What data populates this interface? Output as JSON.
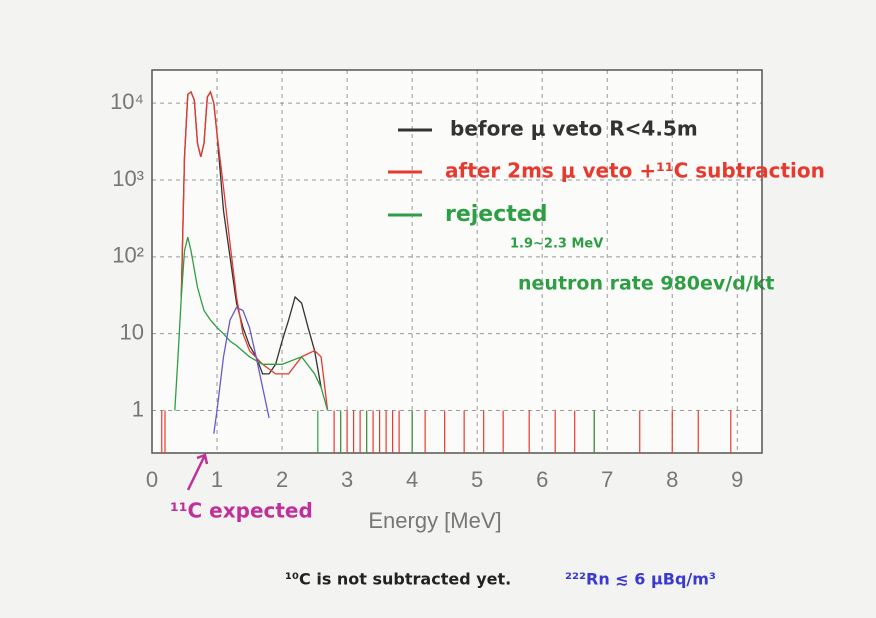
{
  "chart_data": {
    "type": "line",
    "x_label": "Energy [MeV]",
    "xlim": [
      0,
      9.38
    ],
    "xticks": [
      0,
      1,
      2,
      3,
      4,
      5,
      6,
      7,
      8,
      9
    ],
    "ylim": [
      0.28,
      27000
    ],
    "yticks": [
      1,
      10,
      {
        "value": 100,
        "label": "10²"
      },
      {
        "value": 1000,
        "label": "10³"
      },
      {
        "value": 10000,
        "label": "10⁴"
      }
    ],
    "log_y": true,
    "grid": true,
    "series": [
      {
        "name": "before μ veto  R<4.5m",
        "color": "#333333",
        "x": [
          0.45,
          0.5,
          0.55,
          0.6,
          0.65,
          0.7,
          0.75,
          0.8,
          0.85,
          0.9,
          0.95,
          1.0,
          1.1,
          1.2,
          1.3,
          1.4,
          1.5,
          1.6,
          1.7,
          1.8,
          1.9,
          2.0,
          2.1,
          2.2,
          2.3,
          2.4,
          2.5,
          2.6
        ],
        "values": [
          30,
          2000,
          13000,
          14000,
          11000,
          3000,
          2000,
          3000,
          12000,
          14000,
          10000,
          4000,
          400,
          100,
          25,
          12,
          7,
          5,
          3,
          3,
          4,
          8,
          15,
          30,
          25,
          12,
          6,
          2
        ]
      },
      {
        "name": "after 2ms μ veto +¹¹C subtraction",
        "color": "#e8392f",
        "x": [
          0.45,
          0.5,
          0.55,
          0.6,
          0.65,
          0.7,
          0.75,
          0.8,
          0.85,
          0.9,
          0.95,
          1.0,
          1.1,
          1.2,
          1.3,
          1.4,
          1.5,
          1.7,
          1.9,
          2.1,
          2.3,
          2.5,
          2.6,
          2.7
        ],
        "values": [
          30,
          2000,
          13000,
          14000,
          11000,
          3000,
          2000,
          3000,
          12000,
          14000,
          10000,
          4000,
          800,
          150,
          30,
          10,
          6,
          4,
          3,
          3,
          5,
          6,
          5,
          1
        ],
        "spikes_x": [
          0.15,
          0.2,
          2.8,
          2.9,
          3.0,
          3.1,
          3.2,
          3.3,
          3.4,
          3.5,
          3.6,
          3.7,
          3.8,
          4.0,
          4.2,
          4.5,
          4.8,
          5.1,
          5.4,
          5.8,
          6.2,
          6.5,
          6.8,
          7.5,
          8.0,
          8.4,
          8.9
        ],
        "spikes_value": 1
      },
      {
        "name": "rejected",
        "color": "#2e9e44",
        "x": [
          0.35,
          0.4,
          0.45,
          0.5,
          0.55,
          0.6,
          0.7,
          0.8,
          0.9,
          1.0,
          1.1,
          1.2,
          1.3,
          1.5,
          1.7,
          2.0,
          2.3,
          2.5,
          2.6,
          2.7
        ],
        "values": [
          1,
          5,
          30,
          120,
          180,
          120,
          40,
          20,
          15,
          12,
          10,
          8,
          7,
          5,
          4,
          4,
          5,
          3,
          2,
          1
        ],
        "spikes_x": [
          2.55,
          2.9,
          3.3,
          4.0,
          6.8
        ],
        "spikes_value": 1
      },
      {
        "name": "¹¹C expected",
        "color": "#6a5acd",
        "x": [
          0.95,
          1.0,
          1.1,
          1.2,
          1.3,
          1.4,
          1.5,
          1.6,
          1.7,
          1.8
        ],
        "values": [
          0.5,
          1,
          5,
          15,
          22,
          20,
          12,
          5,
          2,
          0.8
        ]
      }
    ],
    "annotations": [
      "1.9~2.3 MeV",
      "neutron rate 980ev/d/kt",
      "¹⁰C is not subtracted yet.",
      "²²²Rn ≲ 6 μBq/m³"
    ]
  }
}
